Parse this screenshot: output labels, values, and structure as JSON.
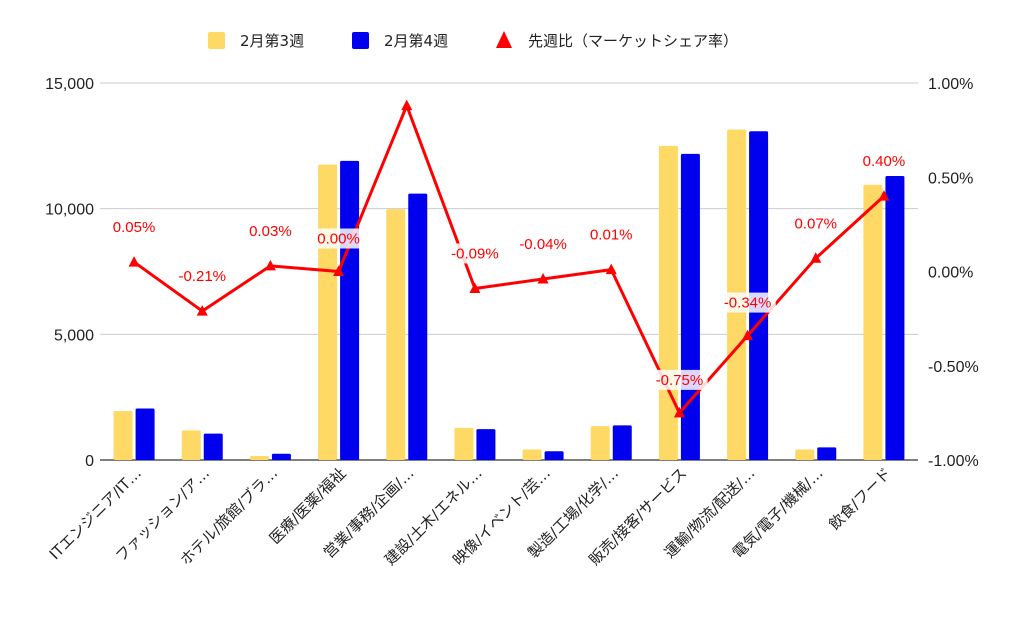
{
  "chart_data": {
    "type": "bar",
    "categories": [
      "ITエンジニア/IT…",
      "ファッション/ア…",
      "ホテル/旅館/ブラ…",
      "医療/医薬/福祉",
      "営業/事務/企画/…",
      "建設/土木/エネル…",
      "映像/イベント/芸…",
      "製造/工場/化学/…",
      "販売/接客/サービス",
      "運輸/物流/配送/…",
      "電気/電子/機械/…",
      "飲食/フード"
    ],
    "series": [
      {
        "name": "2月第3週",
        "type": "bar",
        "axis": "left",
        "color": "#ffd966",
        "values": [
          1950,
          1180,
          160,
          11750,
          9980,
          1280,
          420,
          1350,
          12500,
          13150,
          420,
          10950
        ]
      },
      {
        "name": "2月第4週",
        "type": "bar",
        "axis": "left",
        "color": "#0000ee",
        "values": [
          2050,
          1050,
          250,
          11900,
          10600,
          1230,
          350,
          1380,
          12180,
          13080,
          500,
          11300
        ]
      },
      {
        "name": "先週比（マーケットシェア率）",
        "type": "line",
        "axis": "right",
        "color": "#ff0000",
        "values": [
          0.05,
          -0.21,
          0.03,
          0.0,
          0.88,
          -0.09,
          -0.04,
          0.01,
          -0.75,
          -0.34,
          0.07,
          0.4
        ],
        "labels": [
          "0.05%",
          "-0.21%",
          "0.03%",
          "0.00%",
          "",
          "-0.09%",
          "-0.04%",
          "0.01%",
          "-0.75%",
          "-0.34%",
          "0.07%",
          "0.40%"
        ]
      }
    ],
    "y_left": {
      "min": 0,
      "max": 15000,
      "ticks": [
        0,
        5000,
        10000,
        15000
      ],
      "tick_labels": [
        "0",
        "5,000",
        "10,000",
        "15,000"
      ]
    },
    "y_right": {
      "min": -1.0,
      "max": 1.0,
      "ticks": [
        -1.0,
        -0.5,
        0.0,
        0.5,
        1.0
      ],
      "tick_labels": [
        "-1.00%",
        "-0.50%",
        "0.00%",
        "0.50%",
        "1.00%"
      ]
    },
    "legend_position": "top",
    "grid": true
  }
}
